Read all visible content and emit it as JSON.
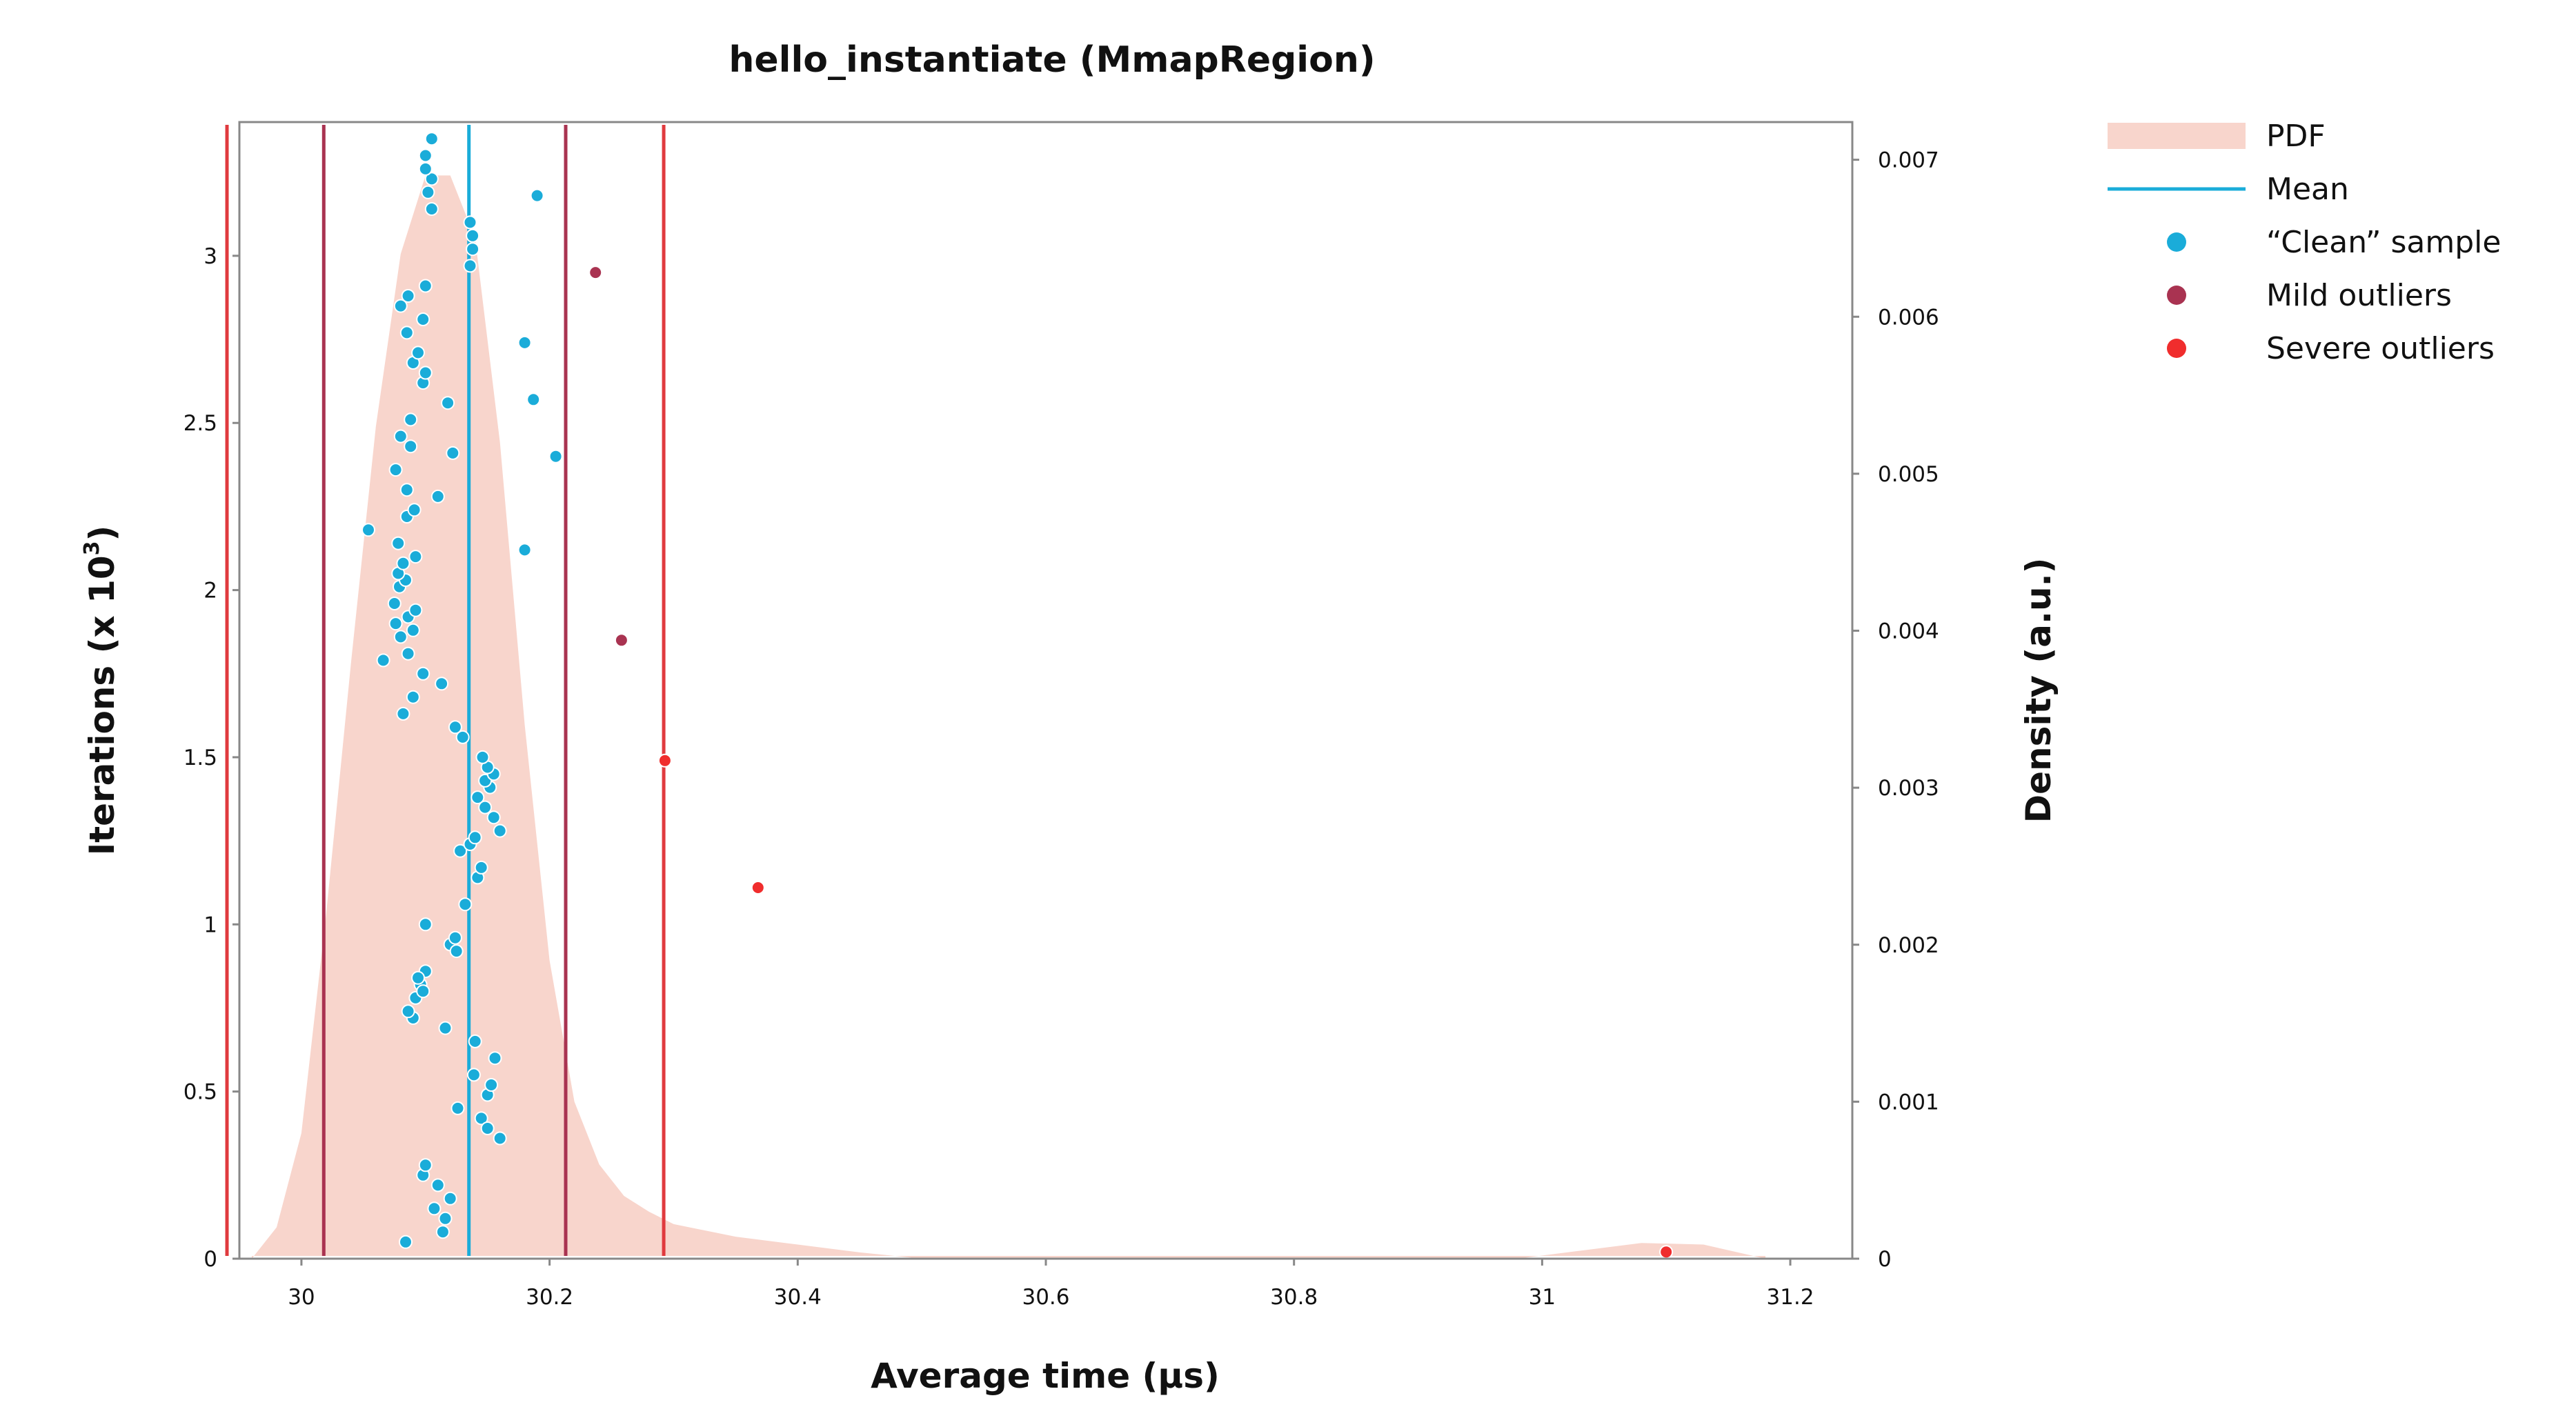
{
  "chart_data": {
    "type": "scatter",
    "title": "hello_instantiate (MmapRegion)",
    "xlabel": "Average time (µs)",
    "ylabel": "Iterations (x 10",
    "ylabel_exponent": "3",
    "y2label": "Density (a.u.)",
    "xlim": [
      29.95,
      31.25
    ],
    "ylim": [
      0,
      3.4
    ],
    "y2lim": [
      0,
      0.00724
    ],
    "x_ticks": [
      {
        "value": 30,
        "label": "30"
      },
      {
        "value": 30.2,
        "label": "30.2"
      },
      {
        "value": 30.4,
        "label": "30.4"
      },
      {
        "value": 30.6,
        "label": "30.6"
      },
      {
        "value": 30.8,
        "label": "30.8"
      },
      {
        "value": 31,
        "label": "31"
      },
      {
        "value": 31.2,
        "label": "31.2"
      }
    ],
    "y_ticks": [
      {
        "value": 0,
        "label": "0"
      },
      {
        "value": 0.5,
        "label": "0.5"
      },
      {
        "value": 1,
        "label": "1"
      },
      {
        "value": 1.5,
        "label": "1.5"
      },
      {
        "value": 2,
        "label": "2"
      },
      {
        "value": 2.5,
        "label": "2.5"
      },
      {
        "value": 3,
        "label": "3"
      }
    ],
    "y2_ticks": [
      {
        "value": 0,
        "label": "0"
      },
      {
        "value": 0.001,
        "label": "0.001"
      },
      {
        "value": 0.002,
        "label": "0.002"
      },
      {
        "value": 0.003,
        "label": "0.003"
      },
      {
        "value": 0.004,
        "label": "0.004"
      },
      {
        "value": 0.005,
        "label": "0.005"
      },
      {
        "value": 0.006,
        "label": "0.006"
      },
      {
        "value": 0.007,
        "label": "0.007"
      }
    ],
    "grid": false,
    "legend_position": "outside-right",
    "legend": [
      {
        "label": "PDF",
        "kind": "area",
        "color": "#F8D5CC"
      },
      {
        "label": "Mean",
        "kind": "line",
        "color": "#1AACD9"
      },
      {
        "label": "“Clean” sample",
        "kind": "dot",
        "color": "#1AACD9"
      },
      {
        "label": "Mild outliers",
        "kind": "dot",
        "color": "#A93351"
      },
      {
        "label": "Severe outliers",
        "kind": "dot",
        "color": "#F02D2D"
      }
    ],
    "vertical_lines": [
      {
        "name": "mean",
        "x": 30.135,
        "color": "#1AACD9"
      },
      {
        "name": "low-mild-fence",
        "x": 30.018,
        "color": "#A93351"
      },
      {
        "name": "high-mild-fence",
        "x": 30.213,
        "color": "#A93351"
      },
      {
        "name": "low-severe-fence",
        "x": 29.94,
        "color": "#E03A3E"
      },
      {
        "name": "high-severe-fence",
        "x": 30.292,
        "color": "#E03A3E"
      }
    ],
    "pdf": [
      [
        29.96,
        0.0
      ],
      [
        29.98,
        0.0002
      ],
      [
        30.0,
        0.0008
      ],
      [
        30.02,
        0.0022
      ],
      [
        30.04,
        0.0038
      ],
      [
        30.06,
        0.0053
      ],
      [
        30.08,
        0.0064
      ],
      [
        30.1,
        0.0069
      ],
      [
        30.12,
        0.0069
      ],
      [
        30.14,
        0.0065
      ],
      [
        30.16,
        0.0052
      ],
      [
        30.18,
        0.0034
      ],
      [
        30.2,
        0.0019
      ],
      [
        30.22,
        0.001
      ],
      [
        30.24,
        0.0006
      ],
      [
        30.26,
        0.0004
      ],
      [
        30.28,
        0.0003
      ],
      [
        30.3,
        0.00022
      ],
      [
        30.35,
        0.00014
      ],
      [
        30.4,
        9e-05
      ],
      [
        30.45,
        4e-05
      ],
      [
        30.5,
        0.0
      ],
      [
        30.6,
        0.0
      ],
      [
        30.8,
        0.0
      ],
      [
        30.98,
        0.0
      ],
      [
        31.03,
        5e-05
      ],
      [
        31.08,
        0.0001
      ],
      [
        31.13,
        9e-05
      ],
      [
        31.18,
        0.0
      ]
    ],
    "series": [
      {
        "name": "“Clean” sample",
        "color": "#1AACD9",
        "points": [
          [
            30.084,
            0.05
          ],
          [
            30.098,
            0.25
          ],
          [
            30.1,
            0.28
          ],
          [
            30.107,
            0.15
          ],
          [
            30.11,
            0.22
          ],
          [
            30.114,
            0.08
          ],
          [
            30.116,
            0.12
          ],
          [
            30.12,
            0.18
          ],
          [
            30.126,
            0.45
          ],
          [
            30.139,
            0.55
          ],
          [
            30.145,
            0.42
          ],
          [
            30.15,
            0.49
          ],
          [
            30.15,
            0.39
          ],
          [
            30.153,
            0.52
          ],
          [
            30.156,
            0.6
          ],
          [
            30.16,
            0.36
          ],
          [
            30.14,
            0.65
          ],
          [
            30.116,
            0.69
          ],
          [
            30.09,
            0.72
          ],
          [
            30.086,
            0.74
          ],
          [
            30.092,
            0.78
          ],
          [
            30.096,
            0.82
          ],
          [
            30.1,
            0.86
          ],
          [
            30.094,
            0.84
          ],
          [
            30.098,
            0.8
          ],
          [
            30.12,
            0.94
          ],
          [
            30.125,
            0.92
          ],
          [
            30.124,
            0.96
          ],
          [
            30.1,
            1.0
          ],
          [
            30.132,
            1.06
          ],
          [
            30.142,
            1.14
          ],
          [
            30.145,
            1.17
          ],
          [
            30.128,
            1.22
          ],
          [
            30.136,
            1.24
          ],
          [
            30.14,
            1.26
          ],
          [
            30.16,
            1.28
          ],
          [
            30.155,
            1.32
          ],
          [
            30.148,
            1.35
          ],
          [
            30.142,
            1.38
          ],
          [
            30.152,
            1.41
          ],
          [
            30.148,
            1.43
          ],
          [
            30.155,
            1.45
          ],
          [
            30.15,
            1.47
          ],
          [
            30.146,
            1.5
          ],
          [
            30.13,
            1.56
          ],
          [
            30.124,
            1.59
          ],
          [
            30.082,
            1.63
          ],
          [
            30.09,
            1.68
          ],
          [
            30.113,
            1.72
          ],
          [
            30.098,
            1.75
          ],
          [
            30.066,
            1.79
          ],
          [
            30.086,
            1.81
          ],
          [
            30.08,
            1.86
          ],
          [
            30.09,
            1.88
          ],
          [
            30.076,
            1.9
          ],
          [
            30.086,
            1.92
          ],
          [
            30.092,
            1.94
          ],
          [
            30.075,
            1.96
          ],
          [
            30.079,
            2.01
          ],
          [
            30.084,
            2.03
          ],
          [
            30.078,
            2.05
          ],
          [
            30.082,
            2.08
          ],
          [
            30.092,
            2.1
          ],
          [
            30.078,
            2.14
          ],
          [
            30.18,
            2.12
          ],
          [
            30.054,
            2.18
          ],
          [
            30.085,
            2.22
          ],
          [
            30.091,
            2.24
          ],
          [
            30.11,
            2.28
          ],
          [
            30.085,
            2.3
          ],
          [
            30.076,
            2.36
          ],
          [
            30.122,
            2.41
          ],
          [
            30.088,
            2.43
          ],
          [
            30.08,
            2.46
          ],
          [
            30.088,
            2.51
          ],
          [
            30.118,
            2.56
          ],
          [
            30.098,
            2.62
          ],
          [
            30.1,
            2.65
          ],
          [
            30.09,
            2.68
          ],
          [
            30.094,
            2.71
          ],
          [
            30.085,
            2.77
          ],
          [
            30.098,
            2.81
          ],
          [
            30.08,
            2.85
          ],
          [
            30.086,
            2.88
          ],
          [
            30.1,
            2.91
          ],
          [
            30.136,
            2.97
          ],
          [
            30.138,
            3.02
          ],
          [
            30.138,
            3.06
          ],
          [
            30.136,
            3.1
          ],
          [
            30.105,
            3.14
          ],
          [
            30.102,
            3.19
          ],
          [
            30.105,
            3.23
          ],
          [
            30.1,
            3.26
          ],
          [
            30.1,
            3.3
          ],
          [
            30.105,
            3.35
          ],
          [
            30.18,
            2.74
          ],
          [
            30.187,
            2.57
          ],
          [
            30.205,
            2.4
          ],
          [
            30.19,
            3.18
          ]
        ]
      },
      {
        "name": "Mild outliers",
        "color": "#A93351",
        "points": [
          [
            30.237,
            2.95
          ],
          [
            30.258,
            1.85
          ]
        ]
      },
      {
        "name": "Severe outliers",
        "color": "#F02D2D",
        "points": [
          [
            30.293,
            1.49
          ],
          [
            30.368,
            1.11
          ],
          [
            31.1,
            0.02
          ]
        ]
      }
    ]
  }
}
